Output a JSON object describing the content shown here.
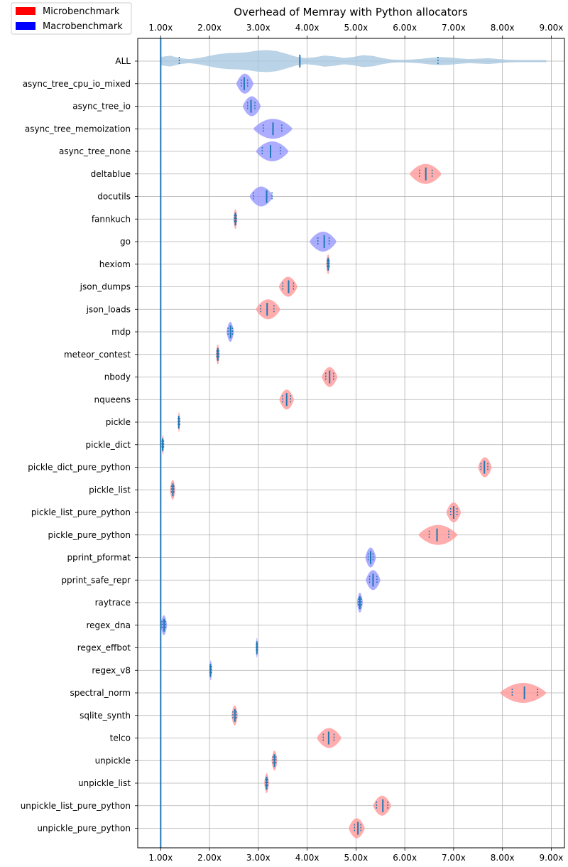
{
  "chart_data": {
    "type": "violin",
    "title": "Overhead of Memray with Python allocators",
    "xlabel": "",
    "ylabel": "",
    "xlim": [
      0.53,
      9.27
    ],
    "xticks": [
      1,
      2,
      3,
      4,
      5,
      6,
      7,
      8,
      9
    ],
    "xtick_labels": [
      "1.00x",
      "2.00x",
      "3.00x",
      "4.00x",
      "5.00x",
      "6.00x",
      "7.00x",
      "8.00x",
      "9.00x"
    ],
    "xaxis_position": "top",
    "grid": true,
    "reference_line": 1.0,
    "legend": {
      "placement": "top-left",
      "entries": [
        {
          "label": "Microbenchmark",
          "color": "#ff0000"
        },
        {
          "label": "Macrobenchmark",
          "color": "#0000ff"
        }
      ]
    },
    "colors": {
      "Microbenchmark": "#ff9999",
      "Macrobenchmark": "#9999ff",
      "ALL": "#a9c8e0",
      "marker": "#1f77b4",
      "reference": "#1f77b4"
    },
    "benchmarks": [
      {
        "name": "ALL",
        "category": "ALL",
        "median": 3.85,
        "q1": 1.38,
        "q3": 6.68,
        "min": 1.0,
        "max": 8.9,
        "spread": 0.4
      },
      {
        "name": "async_tree_cpu_io_mixed",
        "category": "Macrobenchmark",
        "median": 2.71,
        "q1": 2.65,
        "q3": 2.78,
        "min": 2.55,
        "max": 2.9,
        "spread": 0.15
      },
      {
        "name": "async_tree_io",
        "category": "Macrobenchmark",
        "median": 2.85,
        "q1": 2.78,
        "q3": 2.93,
        "min": 2.68,
        "max": 3.05,
        "spread": 0.2
      },
      {
        "name": "async_tree_memoization",
        "category": "Macrobenchmark",
        "median": 3.3,
        "q1": 3.1,
        "q3": 3.48,
        "min": 2.9,
        "max": 3.7,
        "spread": 0.25
      },
      {
        "name": "async_tree_none",
        "category": "Macrobenchmark",
        "median": 3.25,
        "q1": 3.08,
        "q3": 3.45,
        "min": 2.95,
        "max": 3.62,
        "spread": 0.25
      },
      {
        "name": "deltablue",
        "category": "Microbenchmark",
        "median": 6.43,
        "q1": 6.3,
        "q3": 6.56,
        "min": 6.1,
        "max": 6.75,
        "spread": 0.3
      },
      {
        "name": "docutils",
        "category": "Macrobenchmark",
        "median": 3.17,
        "q1": 2.9,
        "q3": 3.28,
        "min": 2.82,
        "max": 3.3,
        "spread": 0.25
      },
      {
        "name": "fannkuch",
        "category": "Microbenchmark",
        "median": 2.53,
        "q1": 2.51,
        "q3": 2.55,
        "min": 2.49,
        "max": 2.57,
        "spread": 0.15
      },
      {
        "name": "go",
        "category": "Macrobenchmark",
        "median": 4.35,
        "q1": 4.22,
        "q3": 4.45,
        "min": 4.05,
        "max": 4.6,
        "spread": 0.3
      },
      {
        "name": "hexiom",
        "category": "Microbenchmark",
        "median": 4.43,
        "q1": 4.41,
        "q3": 4.45,
        "min": 4.39,
        "max": 4.47,
        "spread": 0.15
      },
      {
        "name": "json_dumps",
        "category": "Microbenchmark",
        "median": 3.62,
        "q1": 3.5,
        "q3": 3.72,
        "min": 3.42,
        "max": 3.8,
        "spread": 0.2
      },
      {
        "name": "json_loads",
        "category": "Microbenchmark",
        "median": 3.18,
        "q1": 3.05,
        "q3": 3.32,
        "min": 2.95,
        "max": 3.45,
        "spread": 0.3
      },
      {
        "name": "mdp",
        "category": "Macrobenchmark",
        "median": 2.43,
        "q1": 2.38,
        "q3": 2.47,
        "min": 2.35,
        "max": 2.5,
        "spread": 0.2
      },
      {
        "name": "meteor_contest",
        "category": "Microbenchmark",
        "median": 2.17,
        "q1": 2.15,
        "q3": 2.19,
        "min": 2.13,
        "max": 2.21,
        "spread": 0.15
      },
      {
        "name": "nbody",
        "category": "Microbenchmark",
        "median": 4.46,
        "q1": 4.38,
        "q3": 4.54,
        "min": 4.3,
        "max": 4.62,
        "spread": 0.3
      },
      {
        "name": "nqueens",
        "category": "Microbenchmark",
        "median": 3.58,
        "q1": 3.5,
        "q3": 3.66,
        "min": 3.43,
        "max": 3.73,
        "spread": 0.3
      },
      {
        "name": "pickle",
        "category": "Microbenchmark",
        "median": 1.37,
        "q1": 1.36,
        "q3": 1.39,
        "min": 1.35,
        "max": 1.4,
        "spread": 0.15
      },
      {
        "name": "pickle_dict",
        "category": "Microbenchmark",
        "median": 1.04,
        "q1": 1.03,
        "q3": 1.06,
        "min": 1.02,
        "max": 1.07,
        "spread": 0.15
      },
      {
        "name": "pickle_dict_pure_python",
        "category": "Microbenchmark",
        "median": 7.63,
        "q1": 7.56,
        "q3": 7.7,
        "min": 7.5,
        "max": 7.78,
        "spread": 0.25
      },
      {
        "name": "pickle_list",
        "category": "Microbenchmark",
        "median": 1.25,
        "q1": 1.22,
        "q3": 1.27,
        "min": 1.19,
        "max": 1.3,
        "spread": 0.2
      },
      {
        "name": "pickle_list_pure_python",
        "category": "Microbenchmark",
        "median": 7.0,
        "q1": 6.94,
        "q3": 7.07,
        "min": 6.85,
        "max": 7.15,
        "spread": 0.25
      },
      {
        "name": "pickle_pure_python",
        "category": "Microbenchmark",
        "median": 6.66,
        "q1": 6.5,
        "q3": 6.9,
        "min": 6.28,
        "max": 7.08,
        "spread": 0.3
      },
      {
        "name": "pprint_pformat",
        "category": "Macrobenchmark",
        "median": 5.3,
        "q1": 5.25,
        "q3": 5.35,
        "min": 5.19,
        "max": 5.41,
        "spread": 0.25
      },
      {
        "name": "pprint_safe_repr",
        "category": "Macrobenchmark",
        "median": 5.35,
        "q1": 5.28,
        "q3": 5.43,
        "min": 5.2,
        "max": 5.5,
        "spread": 0.25
      },
      {
        "name": "raytrace",
        "category": "Macrobenchmark",
        "median": 5.08,
        "q1": 5.05,
        "q3": 5.11,
        "min": 5.02,
        "max": 5.14,
        "spread": 0.25
      },
      {
        "name": "regex_dna",
        "category": "Macrobenchmark",
        "median": 1.07,
        "q1": 1.03,
        "q3": 1.1,
        "min": 1.0,
        "max": 1.13,
        "spread": 0.25
      },
      {
        "name": "regex_effbot",
        "category": "Macrobenchmark",
        "median": 2.97,
        "q1": 2.96,
        "q3": 2.98,
        "min": 2.95,
        "max": 2.99,
        "spread": 0.15
      },
      {
        "name": "regex_v8",
        "category": "Macrobenchmark",
        "median": 2.02,
        "q1": 2.01,
        "q3": 2.04,
        "min": 2.0,
        "max": 2.05,
        "spread": 0.15
      },
      {
        "name": "spectral_norm",
        "category": "Microbenchmark",
        "median": 8.45,
        "q1": 8.2,
        "q3": 8.72,
        "min": 7.95,
        "max": 8.9,
        "spread": 0.3
      },
      {
        "name": "sqlite_synth",
        "category": "Microbenchmark",
        "median": 2.52,
        "q1": 2.48,
        "q3": 2.55,
        "min": 2.45,
        "max": 2.58,
        "spread": 0.2
      },
      {
        "name": "telco",
        "category": "Microbenchmark",
        "median": 4.44,
        "q1": 4.33,
        "q3": 4.55,
        "min": 4.2,
        "max": 4.7,
        "spread": 0.3
      },
      {
        "name": "unpickle",
        "category": "Microbenchmark",
        "median": 3.33,
        "q1": 3.3,
        "q3": 3.36,
        "min": 3.27,
        "max": 3.39,
        "spread": 0.2
      },
      {
        "name": "unpickle_list",
        "category": "Microbenchmark",
        "median": 3.17,
        "q1": 3.15,
        "q3": 3.19,
        "min": 3.12,
        "max": 3.22,
        "spread": 0.2
      },
      {
        "name": "unpickle_list_pure_python",
        "category": "Microbenchmark",
        "median": 5.55,
        "q1": 5.42,
        "q3": 5.65,
        "min": 5.35,
        "max": 5.72,
        "spread": 0.3
      },
      {
        "name": "unpickle_pure_python",
        "category": "Microbenchmark",
        "median": 5.04,
        "q1": 4.97,
        "q3": 5.1,
        "min": 4.85,
        "max": 5.18,
        "spread": 0.3
      }
    ]
  }
}
